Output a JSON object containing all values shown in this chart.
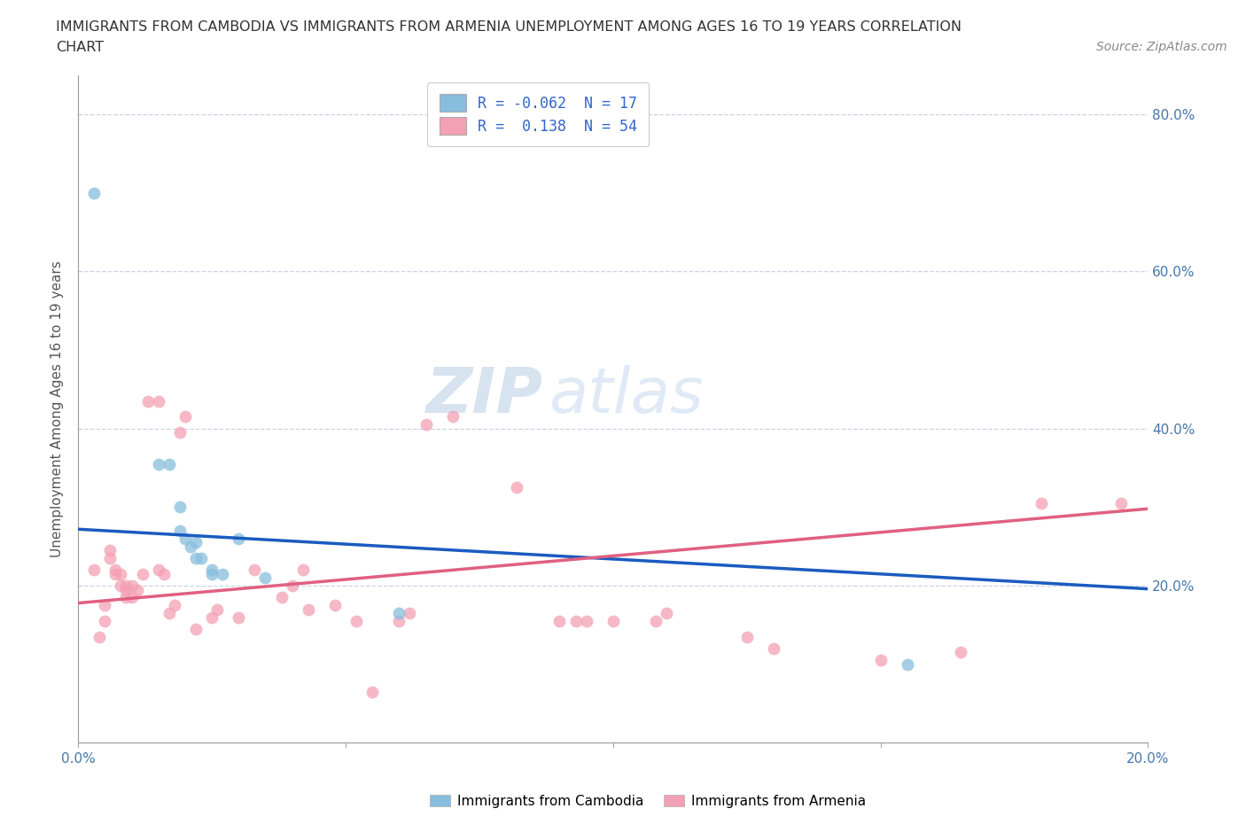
{
  "title_line1": "IMMIGRANTS FROM CAMBODIA VS IMMIGRANTS FROM ARMENIA UNEMPLOYMENT AMONG AGES 16 TO 19 YEARS CORRELATION",
  "title_line2": "CHART",
  "source_text": "Source: ZipAtlas.com",
  "ylabel": "Unemployment Among Ages 16 to 19 years",
  "xlim": [
    0.0,
    0.2
  ],
  "ylim": [
    0.0,
    0.85
  ],
  "xticks": [
    0.0,
    0.05,
    0.1,
    0.15,
    0.2
  ],
  "xtick_labels": [
    "0.0%",
    "",
    "",
    "",
    "20.0%"
  ],
  "ytick_labels_right": [
    "",
    "20.0%",
    "40.0%",
    "60.0%",
    "80.0%"
  ],
  "yticks": [
    0.0,
    0.2,
    0.4,
    0.6,
    0.8
  ],
  "legend_r1": "R = -0.062  N = 17",
  "legend_r2": "R =  0.138  N = 54",
  "watermark_zip": "ZIP",
  "watermark_atlas": "atlas",
  "cambodia_color": "#87bedd",
  "armenia_color": "#f4a0b4",
  "cambodia_line_color": "#1a5bbf",
  "armenia_line_color": "#e06080",
  "background_color": "#ffffff",
  "grid_color": "#c8d4e8",
  "title_fontsize": 11.5,
  "axis_label_fontsize": 11,
  "tick_fontsize": 11,
  "source_fontsize": 10,
  "watermark_fontsize": 52,
  "watermark_color_zip": "#b8cce4",
  "watermark_color_atlas": "#c8daf0",
  "scatter_size": 100,
  "scatter_alpha": 0.75,
  "cambodia_points": [
    [
      0.003,
      0.7
    ],
    [
      0.015,
      0.355
    ],
    [
      0.017,
      0.355
    ],
    [
      0.019,
      0.3
    ],
    [
      0.019,
      0.27
    ],
    [
      0.02,
      0.26
    ],
    [
      0.021,
      0.25
    ],
    [
      0.022,
      0.255
    ],
    [
      0.022,
      0.235
    ],
    [
      0.023,
      0.235
    ],
    [
      0.025,
      0.215
    ],
    [
      0.025,
      0.22
    ],
    [
      0.027,
      0.215
    ],
    [
      0.03,
      0.26
    ],
    [
      0.035,
      0.21
    ],
    [
      0.06,
      0.165
    ],
    [
      0.155,
      0.1
    ]
  ],
  "armenia_points": [
    [
      0.003,
      0.22
    ],
    [
      0.004,
      0.135
    ],
    [
      0.005,
      0.175
    ],
    [
      0.005,
      0.155
    ],
    [
      0.006,
      0.245
    ],
    [
      0.006,
      0.235
    ],
    [
      0.007,
      0.22
    ],
    [
      0.007,
      0.215
    ],
    [
      0.008,
      0.215
    ],
    [
      0.008,
      0.2
    ],
    [
      0.009,
      0.2
    ],
    [
      0.009,
      0.195
    ],
    [
      0.009,
      0.185
    ],
    [
      0.01,
      0.2
    ],
    [
      0.01,
      0.185
    ],
    [
      0.011,
      0.195
    ],
    [
      0.012,
      0.215
    ],
    [
      0.013,
      0.435
    ],
    [
      0.015,
      0.435
    ],
    [
      0.015,
      0.22
    ],
    [
      0.016,
      0.215
    ],
    [
      0.017,
      0.165
    ],
    [
      0.018,
      0.175
    ],
    [
      0.019,
      0.395
    ],
    [
      0.02,
      0.415
    ],
    [
      0.022,
      0.145
    ],
    [
      0.025,
      0.16
    ],
    [
      0.026,
      0.17
    ],
    [
      0.03,
      0.16
    ],
    [
      0.033,
      0.22
    ],
    [
      0.038,
      0.185
    ],
    [
      0.04,
      0.2
    ],
    [
      0.042,
      0.22
    ],
    [
      0.043,
      0.17
    ],
    [
      0.048,
      0.175
    ],
    [
      0.052,
      0.155
    ],
    [
      0.055,
      0.065
    ],
    [
      0.06,
      0.155
    ],
    [
      0.062,
      0.165
    ],
    [
      0.065,
      0.405
    ],
    [
      0.07,
      0.415
    ],
    [
      0.082,
      0.325
    ],
    [
      0.09,
      0.155
    ],
    [
      0.093,
      0.155
    ],
    [
      0.095,
      0.155
    ],
    [
      0.1,
      0.155
    ],
    [
      0.108,
      0.155
    ],
    [
      0.11,
      0.165
    ],
    [
      0.125,
      0.135
    ],
    [
      0.13,
      0.12
    ],
    [
      0.15,
      0.105
    ],
    [
      0.165,
      0.115
    ],
    [
      0.18,
      0.305
    ],
    [
      0.195,
      0.305
    ]
  ],
  "cam_line_x0": 0.0,
  "cam_line_y0": 0.272,
  "cam_line_x1": 0.2,
  "cam_line_y1": 0.196,
  "arm_line_x0": 0.0,
  "arm_line_y0": 0.178,
  "arm_line_x1": 0.2,
  "arm_line_y1": 0.298
}
